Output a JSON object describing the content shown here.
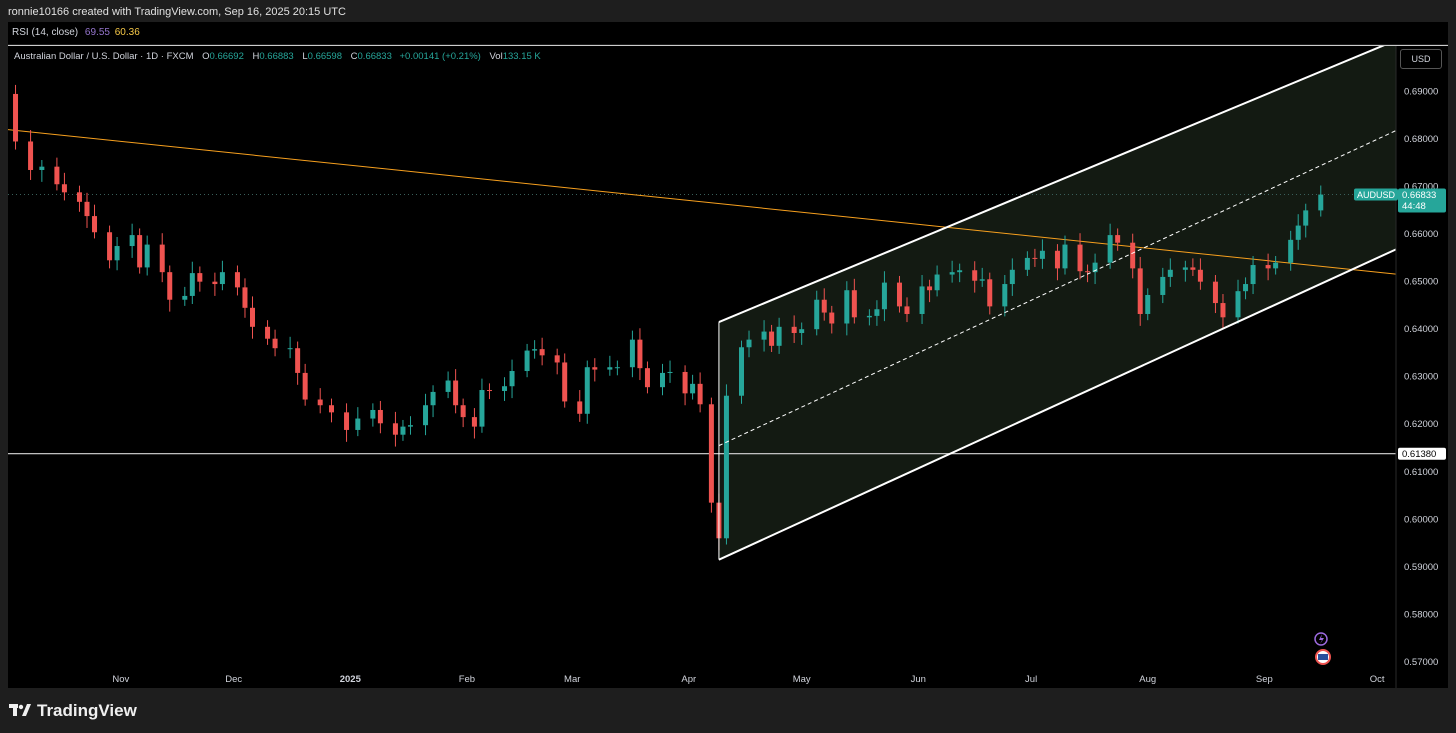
{
  "header": {
    "credit": "ronnie10166 created with TradingView.com, Sep 16, 2025 20:15 UTC",
    "rsi_label": "RSI (14, close)",
    "rsi_value_1": "69.55",
    "rsi_value_2": "60.36"
  },
  "legend": {
    "symbol": "Australian Dollar / U.S. Dollar · 1D · FXCM",
    "open_key": "O",
    "open": "0.66692",
    "high_key": "H",
    "high": "0.66883",
    "low_key": "L",
    "low": "0.66598",
    "close_key": "C",
    "close": "0.66833",
    "change": "+0.00141 (+0.21%)",
    "vol_key": "Vol",
    "vol": "133.15 K"
  },
  "axis": {
    "currency": "USD"
  },
  "badges": {
    "ticker": "AUDUSD",
    "last_price": "0.66833",
    "countdown": "44:48",
    "level_price": "0.61380"
  },
  "brand": {
    "name": "TradingView"
  },
  "colors": {
    "up": "#26a69a",
    "down": "#ef5350",
    "trendline": "#f7a01e",
    "channel_fill": "#131a12",
    "background": "#000000"
  },
  "chart_data": {
    "type": "candlestick",
    "y_ticks": [
      "0.69000",
      "0.68000",
      "0.67000",
      "0.66000",
      "0.65000",
      "0.64000",
      "0.63000",
      "0.62000",
      "0.61000",
      "0.60000",
      "0.59000",
      "0.58000",
      "0.57000"
    ],
    "ylim": [
      0.5645,
      0.6998
    ],
    "x_ticks": [
      "Nov",
      "Dec",
      "2025",
      "Feb",
      "Mar",
      "Apr",
      "May",
      "Jun",
      "Jul",
      "Aug",
      "Sep",
      "Oct"
    ],
    "x_tick_dates": [
      "2024-11-01",
      "2024-12-01",
      "2025-01-01",
      "2025-02-01",
      "2025-03-01",
      "2025-04-01",
      "2025-05-01",
      "2025-06-01",
      "2025-07-01",
      "2025-08-01",
      "2025-09-01",
      "2025-10-01"
    ],
    "xlim": [
      "2024-10-02",
      "2025-10-06"
    ],
    "last_price": 0.66833,
    "horizontal_level": 0.6138,
    "descending_trendline": [
      [
        "2024-10-02",
        0.682
      ],
      [
        "2025-10-06",
        0.6516
      ]
    ],
    "channel": {
      "start": "2025-04-09",
      "end": "2025-10-06",
      "upper": [
        0.6415,
        0.7008
      ],
      "mid": [
        0.6155,
        0.6818
      ],
      "lower": [
        0.5915,
        0.6568
      ]
    },
    "closes": [
      [
        "2024-10-02",
        0.6895
      ],
      [
        "2024-10-04",
        0.6795
      ],
      [
        "2024-10-08",
        0.6735
      ],
      [
        "2024-10-11",
        0.6742
      ],
      [
        "2024-10-15",
        0.6705
      ],
      [
        "2024-10-17",
        0.6688
      ],
      [
        "2024-10-21",
        0.6668
      ],
      [
        "2024-10-23",
        0.6638
      ],
      [
        "2024-10-25",
        0.6604
      ],
      [
        "2024-10-29",
        0.6545
      ],
      [
        "2024-10-31",
        0.6575
      ],
      [
        "2024-11-04",
        0.6598
      ],
      [
        "2024-11-06",
        0.653
      ],
      [
        "2024-11-08",
        0.6578
      ],
      [
        "2024-11-12",
        0.652
      ],
      [
        "2024-11-14",
        0.6462
      ],
      [
        "2024-11-18",
        0.647
      ],
      [
        "2024-11-20",
        0.6518
      ],
      [
        "2024-11-22",
        0.65
      ],
      [
        "2024-11-26",
        0.6495
      ],
      [
        "2024-11-28",
        0.652
      ],
      [
        "2024-12-02",
        0.6488
      ],
      [
        "2024-12-04",
        0.6445
      ],
      [
        "2024-12-06",
        0.6405
      ],
      [
        "2024-12-10",
        0.638
      ],
      [
        "2024-12-12",
        0.636
      ],
      [
        "2024-12-16",
        0.636
      ],
      [
        "2024-12-18",
        0.6308
      ],
      [
        "2024-12-20",
        0.6252
      ],
      [
        "2024-12-24",
        0.624
      ],
      [
        "2024-12-27",
        0.6225
      ],
      [
        "2024-12-31",
        0.6188
      ],
      [
        "2025-01-03",
        0.6212
      ],
      [
        "2025-01-07",
        0.623
      ],
      [
        "2025-01-09",
        0.6202
      ],
      [
        "2025-01-13",
        0.6178
      ],
      [
        "2025-01-15",
        0.6195
      ],
      [
        "2025-01-17",
        0.6198
      ],
      [
        "2025-01-21",
        0.624
      ],
      [
        "2025-01-23",
        0.6268
      ],
      [
        "2025-01-27",
        0.6292
      ],
      [
        "2025-01-29",
        0.624
      ],
      [
        "2025-01-31",
        0.6215
      ],
      [
        "2025-02-03",
        0.6195
      ],
      [
        "2025-02-05",
        0.6272
      ],
      [
        "2025-02-07",
        0.627
      ],
      [
        "2025-02-11",
        0.628
      ],
      [
        "2025-02-13",
        0.6312
      ],
      [
        "2025-02-17",
        0.6355
      ],
      [
        "2025-02-19",
        0.6358
      ],
      [
        "2025-02-21",
        0.6345
      ],
      [
        "2025-02-25",
        0.633
      ],
      [
        "2025-02-27",
        0.6248
      ],
      [
        "2025-03-03",
        0.6222
      ],
      [
        "2025-03-05",
        0.632
      ],
      [
        "2025-03-07",
        0.6315
      ],
      [
        "2025-03-11",
        0.632
      ],
      [
        "2025-03-13",
        0.632
      ],
      [
        "2025-03-17",
        0.6378
      ],
      [
        "2025-03-19",
        0.6318
      ],
      [
        "2025-03-21",
        0.6278
      ],
      [
        "2025-03-25",
        0.6308
      ],
      [
        "2025-03-27",
        0.631
      ],
      [
        "2025-03-31",
        0.6265
      ],
      [
        "2025-04-02",
        0.6285
      ],
      [
        "2025-04-04",
        0.6242
      ],
      [
        "2025-04-07",
        0.6035
      ],
      [
        "2025-04-09",
        0.596
      ],
      [
        "2025-04-11",
        0.626
      ],
      [
        "2025-04-15",
        0.6362
      ],
      [
        "2025-04-17",
        0.6378
      ],
      [
        "2025-04-21",
        0.6395
      ],
      [
        "2025-04-23",
        0.6365
      ],
      [
        "2025-04-25",
        0.6405
      ],
      [
        "2025-04-29",
        0.6392
      ],
      [
        "2025-05-01",
        0.64
      ],
      [
        "2025-05-05",
        0.6462
      ],
      [
        "2025-05-07",
        0.6435
      ],
      [
        "2025-05-09",
        0.6412
      ],
      [
        "2025-05-13",
        0.6482
      ],
      [
        "2025-05-15",
        0.6425
      ],
      [
        "2025-05-19",
        0.6428
      ],
      [
        "2025-05-21",
        0.6442
      ],
      [
        "2025-05-23",
        0.6498
      ],
      [
        "2025-05-27",
        0.6448
      ],
      [
        "2025-05-29",
        0.6432
      ],
      [
        "2025-06-02",
        0.649
      ],
      [
        "2025-06-04",
        0.6482
      ],
      [
        "2025-06-06",
        0.6515
      ],
      [
        "2025-06-10",
        0.652
      ],
      [
        "2025-06-12",
        0.6524
      ],
      [
        "2025-06-16",
        0.6502
      ],
      [
        "2025-06-18",
        0.6505
      ],
      [
        "2025-06-20",
        0.6448
      ],
      [
        "2025-06-24",
        0.6495
      ],
      [
        "2025-06-26",
        0.6525
      ],
      [
        "2025-06-30",
        0.655
      ],
      [
        "2025-07-02",
        0.6548
      ],
      [
        "2025-07-04",
        0.6565
      ],
      [
        "2025-07-08",
        0.6528
      ],
      [
        "2025-07-10",
        0.6578
      ],
      [
        "2025-07-14",
        0.6522
      ],
      [
        "2025-07-16",
        0.652
      ],
      [
        "2025-07-18",
        0.654
      ],
      [
        "2025-07-22",
        0.6598
      ],
      [
        "2025-07-24",
        0.6582
      ],
      [
        "2025-07-28",
        0.6528
      ],
      [
        "2025-07-30",
        0.6432
      ],
      [
        "2025-08-01",
        0.6472
      ],
      [
        "2025-08-05",
        0.651
      ],
      [
        "2025-08-07",
        0.6525
      ],
      [
        "2025-08-11",
        0.653
      ],
      [
        "2025-08-13",
        0.6525
      ],
      [
        "2025-08-15",
        0.65
      ],
      [
        "2025-08-19",
        0.6455
      ],
      [
        "2025-08-21",
        0.6425
      ],
      [
        "2025-08-25",
        0.648
      ],
      [
        "2025-08-27",
        0.6495
      ],
      [
        "2025-08-29",
        0.6535
      ],
      [
        "2025-09-02",
        0.6528
      ],
      [
        "2025-09-04",
        0.654
      ],
      [
        "2025-09-08",
        0.6588
      ],
      [
        "2025-09-10",
        0.6618
      ],
      [
        "2025-09-12",
        0.665
      ],
      [
        "2025-09-16",
        0.66833
      ]
    ]
  }
}
